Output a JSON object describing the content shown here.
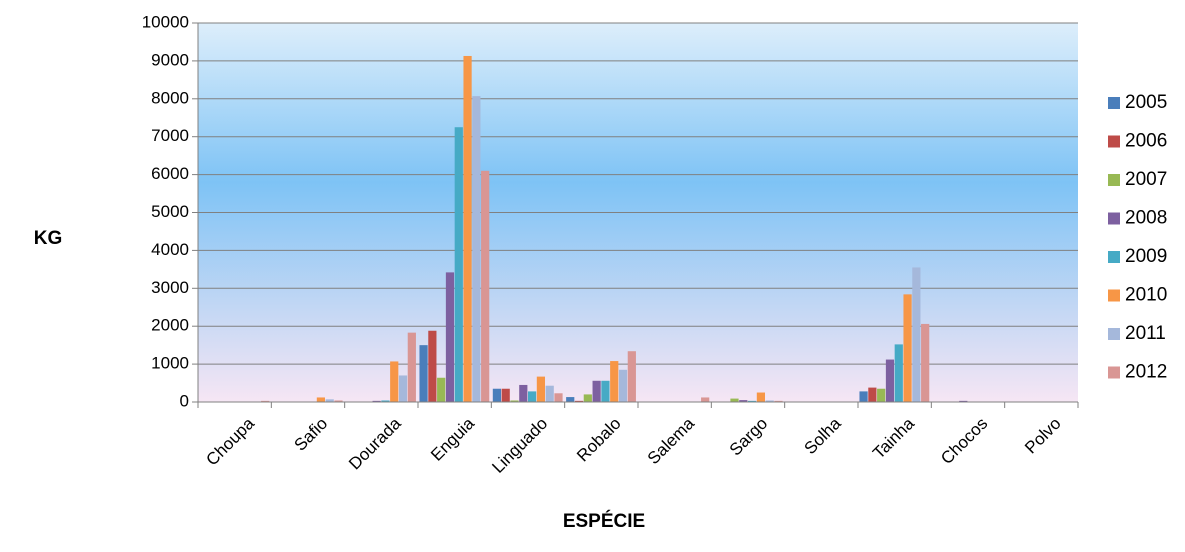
{
  "chart_data": {
    "type": "bar",
    "title": "",
    "xlabel": "ESPÉCIE",
    "ylabel": "KG",
    "ylim": [
      0,
      10000
    ],
    "yticks": [
      0,
      1000,
      2000,
      3000,
      4000,
      5000,
      6000,
      7000,
      8000,
      9000,
      10000
    ],
    "grid": true,
    "legend_position": "right",
    "categories": [
      "Choupa",
      "Safio",
      "Dourada",
      "Enguia",
      "Linguado",
      "Robalo",
      "Salema",
      "Sargo",
      "Solha",
      "Tainha",
      "Chocos",
      "Polvo"
    ],
    "series": [
      {
        "name": "2005",
        "color": "#4a7ebb",
        "values": [
          0,
          0,
          0,
          1500,
          350,
          130,
          0,
          0,
          0,
          280,
          0,
          0
        ]
      },
      {
        "name": "2006",
        "color": "#be4b48",
        "values": [
          0,
          0,
          0,
          1880,
          350,
          30,
          0,
          0,
          0,
          380,
          0,
          0
        ]
      },
      {
        "name": "2007",
        "color": "#98b954",
        "values": [
          0,
          0,
          0,
          640,
          40,
          200,
          0,
          90,
          0,
          350,
          0,
          0
        ]
      },
      {
        "name": "2008",
        "color": "#7d60a0",
        "values": [
          0,
          0,
          30,
          3420,
          450,
          560,
          0,
          50,
          0,
          1120,
          30,
          0
        ]
      },
      {
        "name": "2009",
        "color": "#46aac5",
        "values": [
          0,
          0,
          40,
          7250,
          280,
          560,
          0,
          30,
          0,
          1520,
          0,
          0
        ]
      },
      {
        "name": "2010",
        "color": "#f79646",
        "values": [
          0,
          120,
          1070,
          9130,
          670,
          1080,
          0,
          250,
          0,
          2840,
          0,
          0
        ]
      },
      {
        "name": "2011",
        "color": "#a5b8db",
        "values": [
          0,
          70,
          700,
          8070,
          430,
          850,
          0,
          40,
          0,
          3550,
          0,
          0
        ]
      },
      {
        "name": "2012",
        "color": "#d99694",
        "values": [
          30,
          40,
          1830,
          6100,
          230,
          1340,
          120,
          30,
          0,
          2060,
          0,
          0
        ]
      }
    ]
  }
}
